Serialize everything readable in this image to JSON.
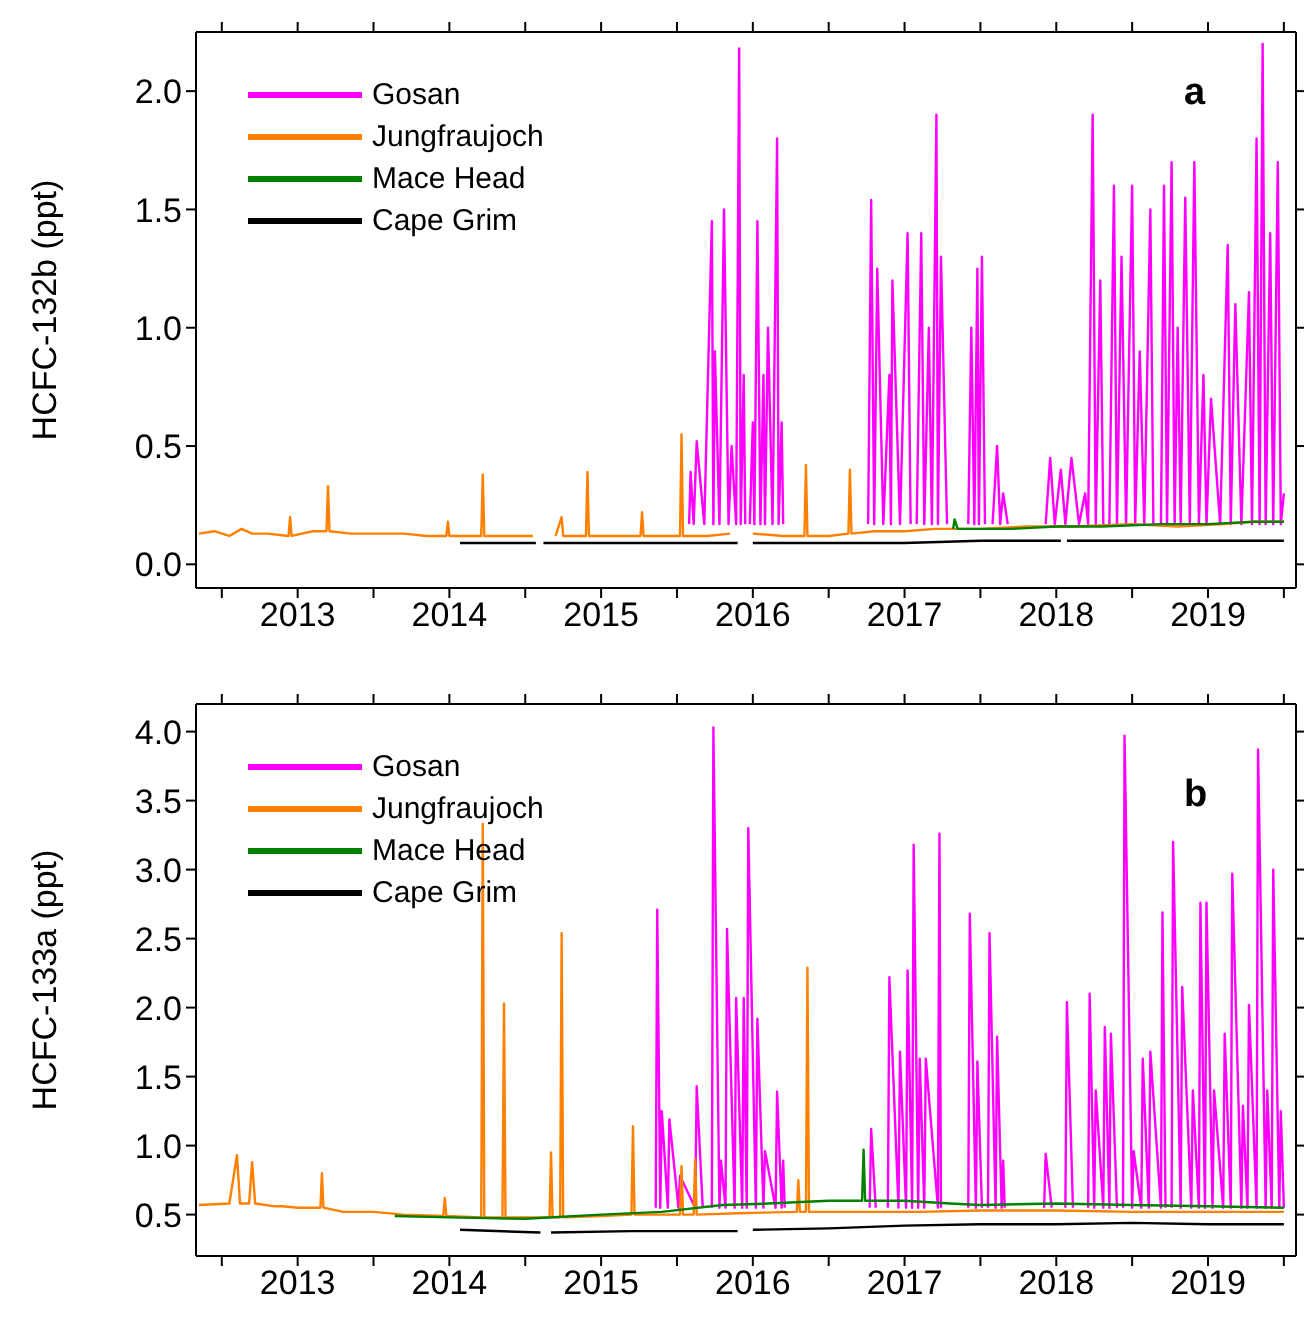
{
  "chart_data": [
    {
      "type": "line",
      "ylabel": "HCFC-132b (ppt)",
      "annotations": [
        "a"
      ],
      "legend": "top left",
      "xlim": [
        2012.83,
        2020.08
      ],
      "xticks": [
        {
          "value": 2013,
          "label": null
        },
        {
          "value": 2013.5,
          "label": "2013"
        },
        {
          "value": 2014,
          "label": null
        },
        {
          "value": 2014.5,
          "label": "2014"
        },
        {
          "value": 2015,
          "label": null
        },
        {
          "value": 2015.5,
          "label": "2015"
        },
        {
          "value": 2016,
          "label": null
        },
        {
          "value": 2016.5,
          "label": "2016"
        },
        {
          "value": 2017,
          "label": null
        },
        {
          "value": 2017.5,
          "label": "2017"
        },
        {
          "value": 2018,
          "label": null
        },
        {
          "value": 2018.5,
          "label": "2018"
        },
        {
          "value": 2019,
          "label": null
        },
        {
          "value": 2019.5,
          "label": "2019"
        },
        {
          "value": 2020,
          "label": null
        }
      ],
      "ylim": [
        -0.1,
        2.25
      ],
      "yticks": [
        {
          "value": 0,
          "label": "0.0"
        },
        {
          "value": 0.5,
          "label": "0.5"
        },
        {
          "value": 1,
          "label": "1.0"
        },
        {
          "value": 1.5,
          "label": "1.5"
        },
        {
          "value": 2,
          "label": "2.0"
        }
      ],
      "series": [
        {
          "name": "Gosan",
          "color": "#ff00ff",
          "x": [
            2016.08,
            2016.09,
            2016.11,
            2016.13,
            2016.18,
            2016.23,
            2016.24,
            2016.25,
            2016.28,
            2016.31,
            2016.34,
            2016.36,
            2016.39,
            2016.41,
            2016.42,
            2016.44,
            2016.45,
            2016.47,
            2016.48,
            2016.5,
            2016.51,
            2016.53,
            2016.55,
            2016.57,
            2016.58,
            2016.6,
            2016.63,
            2016.66,
            2016.67,
            2016.69,
            2016.7,
            2016.98,
            2017.26,
            2017.28,
            2017.3,
            2017.32,
            2017.36,
            2017.4,
            2017.41,
            2017.42,
            2017.47,
            2017.52,
            2017.54,
            2017.56,
            2017.58,
            2017.61,
            2017.63,
            2017.66,
            2017.68,
            2017.71,
            2017.72,
            2017.74,
            2017.78,
            2017.85,
            2017.92,
            2017.94,
            2017.96,
            2017.98,
            2017.99,
            2018.01,
            2018.03,
            2018.06,
            2018.08,
            2018.11,
            2018.13,
            2018.15,
            2018.18,
            2018.3,
            2018.43,
            2018.46,
            2018.49,
            2018.53,
            2018.56,
            2018.6,
            2018.65,
            2018.69,
            2018.71,
            2018.74,
            2018.76,
            2018.79,
            2018.81,
            2018.83,
            2018.85,
            2018.88,
            2018.9,
            2018.93,
            2018.96,
            2019.0,
            2019.02,
            2019.05,
            2019.08,
            2019.12,
            2019.14,
            2019.17,
            2019.19,
            2019.21,
            2019.23,
            2019.26,
            2019.28,
            2019.3,
            2019.32,
            2019.35,
            2019.38,
            2019.41,
            2019.44,
            2019.47,
            2019.49,
            2019.52,
            2019.58,
            2019.63,
            2019.65,
            2019.68,
            2019.72,
            2019.77,
            2019.79,
            2019.82,
            2019.84,
            2019.86,
            2019.88,
            2019.91,
            2019.93,
            2019.96,
            2019.98,
            2020.0
          ],
          "values": [
            0.17,
            0.39,
            0.17,
            0.52,
            0.17,
            1.45,
            0.17,
            0.9,
            0.17,
            1.5,
            0.17,
            0.5,
            0.17,
            2.18,
            0.17,
            0.8,
            0.17,
            null,
            0.17,
            0.6,
            0.17,
            1.45,
            0.17,
            0.8,
            0.17,
            1.0,
            0.17,
            1.8,
            0.17,
            0.6,
            0.17,
            null,
            0.17,
            1.54,
            0.17,
            1.25,
            0.17,
            0.8,
            0.17,
            1.2,
            0.17,
            1.4,
            0.17,
            null,
            0.17,
            1.4,
            0.17,
            1.0,
            0.17,
            1.9,
            0.17,
            1.3,
            0.17,
            null,
            0.17,
            1.0,
            0.17,
            1.25,
            0.17,
            1.3,
            0.17,
            null,
            0.17,
            0.5,
            0.17,
            0.3,
            0.17,
            null,
            0.17,
            0.45,
            0.17,
            0.4,
            0.17,
            0.45,
            0.17,
            0.3,
            0.17,
            1.9,
            0.17,
            1.2,
            0.17,
            null,
            0.17,
            1.6,
            0.17,
            1.3,
            0.17,
            1.6,
            0.17,
            0.9,
            0.17,
            1.5,
            0.17,
            null,
            0.17,
            1.6,
            0.17,
            1.7,
            0.17,
            1.0,
            0.17,
            1.55,
            0.17,
            1.7,
            0.17,
            0.8,
            0.17,
            0.7,
            0.17,
            1.35,
            0.17,
            1.1,
            0.17,
            1.15,
            0.17,
            1.8,
            0.17,
            2.2,
            0.17,
            1.4,
            0.17,
            1.7,
            0.17,
            0.3
          ]
        },
        {
          "name": "Jungfraujoch",
          "color": "#ff8000",
          "x": [
            2012.85,
            2012.95,
            2013.05,
            2013.13,
            2013.2,
            2013.3,
            2013.44,
            2013.45,
            2013.46,
            2013.6,
            2013.69,
            2013.7,
            2013.71,
            2013.85,
            2014.0,
            2014.2,
            2014.35,
            2014.48,
            2014.49,
            2014.5,
            2014.65,
            2014.71,
            2014.72,
            2014.73,
            2014.9,
            2015.05,
            2015.12,
            2015.2,
            2015.24,
            2015.25,
            2015.4,
            2015.41,
            2015.42,
            2015.6,
            2015.76,
            2015.77,
            2015.78,
            2015.95,
            2016.02,
            2016.03,
            2016.04,
            2016.2,
            2016.35,
            2016.42,
            2016.5,
            2016.7,
            2016.84,
            2016.85,
            2016.86,
            2017.0,
            2017.13,
            2017.14,
            2017.15,
            2017.3,
            2017.5,
            2017.7,
            2018.0,
            2018.3,
            2018.6,
            2019.0,
            2019.3,
            2019.6,
            2019.8,
            2020.0
          ],
          "values": [
            0.13,
            0.14,
            0.12,
            0.15,
            0.13,
            0.13,
            0.12,
            0.2,
            0.12,
            0.14,
            0.14,
            0.33,
            0.14,
            0.13,
            0.13,
            0.13,
            0.12,
            0.12,
            0.18,
            0.12,
            0.12,
            0.12,
            0.38,
            0.12,
            0.12,
            0.12,
            null,
            0.12,
            0.2,
            0.12,
            0.12,
            0.39,
            0.12,
            0.12,
            0.12,
            0.22,
            0.12,
            0.12,
            0.12,
            0.55,
            0.12,
            0.12,
            0.13,
            null,
            0.13,
            0.12,
            0.12,
            0.42,
            0.12,
            0.12,
            0.13,
            0.4,
            0.13,
            0.14,
            0.14,
            0.15,
            0.15,
            0.16,
            0.16,
            0.17,
            0.16,
            0.17,
            0.18,
            0.18
          ]
        },
        {
          "name": "Mace Head",
          "color": "#008000",
          "x": [
            2017.82,
            2017.83,
            2017.85,
            2018.2,
            2018.5,
            2018.8,
            2019.2,
            2019.5,
            2019.8,
            2020.0
          ],
          "values": [
            0.15,
            0.19,
            0.15,
            0.15,
            0.16,
            0.16,
            0.17,
            0.17,
            0.18,
            0.18
          ]
        },
        {
          "name": "Cape Grim",
          "color": "#000000",
          "x": [
            2014.57,
            2014.9,
            2015.07,
            2015.1,
            2015.12,
            2015.5,
            2015.9,
            2016.4,
            2016.45,
            2016.5,
            2017.0,
            2017.5,
            2018.0,
            2018.53,
            2018.55,
            2018.57,
            2019.0,
            2019.5,
            2020.0
          ],
          "values": [
            0.09,
            0.09,
            0.09,
            null,
            0.09,
            0.09,
            0.09,
            0.09,
            null,
            0.09,
            0.09,
            0.09,
            0.1,
            0.1,
            null,
            0.1,
            0.1,
            0.1,
            0.1
          ]
        }
      ]
    },
    {
      "type": "line",
      "ylabel": "HCFC-133a (ppt)",
      "annotations": [
        "b"
      ],
      "legend": "top left",
      "xlim": [
        2012.83,
        2020.08
      ],
      "xticks": [
        {
          "value": 2013,
          "label": null
        },
        {
          "value": 2013.5,
          "label": "2013"
        },
        {
          "value": 2014,
          "label": null
        },
        {
          "value": 2014.5,
          "label": "2014"
        },
        {
          "value": 2015,
          "label": null
        },
        {
          "value": 2015.5,
          "label": "2015"
        },
        {
          "value": 2016,
          "label": null
        },
        {
          "value": 2016.5,
          "label": "2016"
        },
        {
          "value": 2017,
          "label": null
        },
        {
          "value": 2017.5,
          "label": "2017"
        },
        {
          "value": 2018,
          "label": null
        },
        {
          "value": 2018.5,
          "label": "2018"
        },
        {
          "value": 2019,
          "label": null
        },
        {
          "value": 2019.5,
          "label": "2019"
        },
        {
          "value": 2020,
          "label": null
        }
      ],
      "ylim": [
        0.2,
        4.2
      ],
      "yticks": [
        {
          "value": 0.5,
          "label": "0.5"
        },
        {
          "value": 1,
          "label": "1.0"
        },
        {
          "value": 1.5,
          "label": "1.5"
        },
        {
          "value": 2,
          "label": "2.0"
        },
        {
          "value": 2.5,
          "label": "2.5"
        },
        {
          "value": 3,
          "label": "3.0"
        },
        {
          "value": 3.5,
          "label": "3.5"
        },
        {
          "value": 4,
          "label": "4.0"
        }
      ],
      "series": [
        {
          "name": "Gosan",
          "color": "#ff00ff",
          "x": [
            2015.86,
            2015.87,
            2015.89,
            2015.9,
            2015.94,
            2015.95,
            2016.01,
            2016.02,
            2016.12,
            2016.13,
            2016.17,
            2016.18,
            2016.2,
            2016.21,
            2016.23,
            2016.24,
            2016.28,
            2016.29,
            2016.32,
            2016.33,
            2016.38,
            2016.39,
            2016.43,
            2016.44,
            2016.46,
            2016.47,
            2016.52,
            2016.53,
            2016.57,
            2016.58,
            2016.65,
            2016.66,
            2016.69,
            2016.7,
            2016.71,
            2016.9,
            2017.27,
            2017.28,
            2017.31,
            2017.32,
            2017.33,
            2017.34,
            2017.39,
            2017.4,
            2017.46,
            2017.47,
            2017.51,
            2017.52,
            2017.55,
            2017.56,
            2017.59,
            2017.6,
            2017.63,
            2017.64,
            2017.72,
            2017.73,
            2017.74,
            2017.85,
            2017.92,
            2017.93,
            2017.97,
            2017.98,
            2018.01,
            2018.02,
            2018.05,
            2018.06,
            2018.1,
            2018.11,
            2018.14,
            2018.15,
            2018.16,
            2018.3,
            2018.42,
            2018.43,
            2018.47,
            2018.48,
            2018.56,
            2018.57,
            2018.61,
            2018.62,
            2018.71,
            2018.72,
            2018.75,
            2018.76,
            2018.81,
            2018.82,
            2018.85,
            2018.86,
            2018.9,
            2018.91,
            2018.94,
            2018.95,
            2019.0,
            2019.01,
            2019.06,
            2019.07,
            2019.11,
            2019.12,
            2019.19,
            2019.2,
            2019.22,
            2019.23,
            2019.26,
            2019.27,
            2019.32,
            2019.33,
            2019.39,
            2019.4,
            2019.44,
            2019.45,
            2019.48,
            2019.49,
            2019.53,
            2019.54,
            2019.6,
            2019.61,
            2019.65,
            2019.66,
            2019.72,
            2019.73,
            2019.76,
            2019.77,
            2019.82,
            2019.83,
            2019.88,
            2019.89,
            2019.92,
            2019.93,
            2019.97,
            2019.98,
            2020.0
          ],
          "values": [
            0.55,
            2.71,
            0.55,
            1.25,
            0.55,
            1.19,
            0.55,
            0.78,
            0.55,
            1.43,
            0.55,
            null,
            null,
            null,
            0.55,
            4.03,
            0.55,
            0.89,
            0.55,
            2.57,
            0.55,
            2.07,
            0.55,
            2.07,
            0.55,
            3.3,
            0.55,
            1.92,
            0.55,
            0.96,
            0.55,
            1.39,
            0.55,
            0.89,
            0.55,
            null,
            0.55,
            1.12,
            0.55,
            null,
            null,
            null,
            0.55,
            2.22,
            0.55,
            1.68,
            0.55,
            2.27,
            0.55,
            3.18,
            0.55,
            1.63,
            0.55,
            1.63,
            0.55,
            3.26,
            0.55,
            null,
            0.55,
            2.68,
            0.55,
            1.61,
            0.55,
            null,
            0.55,
            2.54,
            0.55,
            1.79,
            0.55,
            0.89,
            0.55,
            null,
            0.55,
            0.94,
            0.55,
            null,
            0.55,
            2.04,
            0.55,
            null,
            0.55,
            2.1,
            0.55,
            1.4,
            0.55,
            1.86,
            0.55,
            1.81,
            0.55,
            null,
            0.55,
            3.97,
            0.55,
            0.96,
            0.55,
            1.63,
            0.55,
            1.68,
            0.55,
            2.69,
            0.55,
            null,
            0.55,
            3.2,
            0.55,
            2.15,
            0.55,
            1.4,
            0.55,
            2.76,
            0.55,
            2.76,
            0.55,
            1.4,
            0.55,
            1.81,
            0.55,
            2.97,
            0.55,
            1.29,
            0.55,
            2.02,
            0.55,
            3.87,
            0.55,
            1.4,
            0.55,
            3.0,
            0.55,
            1.25,
            0.55
          ]
        },
        {
          "name": "Jungfraujoch",
          "color": "#ff8000",
          "x": [
            2012.85,
            2013.05,
            2013.1,
            2013.12,
            2013.18,
            2013.2,
            2013.22,
            2013.35,
            2013.4,
            2013.5,
            2013.65,
            2013.66,
            2013.67,
            2013.8,
            2014.0,
            2014.2,
            2014.46,
            2014.47,
            2014.48,
            2014.71,
            2014.72,
            2014.73,
            2014.85,
            2014.86,
            2014.87,
            2015.0,
            2015.16,
            2015.17,
            2015.18,
            2015.23,
            2015.24,
            2015.25,
            2015.5,
            2015.7,
            2015.71,
            2015.72,
            2016.02,
            2016.03,
            2016.04,
            2016.11,
            2016.12,
            2016.13,
            2016.4,
            2016.79,
            2016.8,
            2016.81,
            2016.85,
            2016.86,
            2016.87,
            2017.2,
            2017.6,
            2018.0,
            2018.5,
            2019.0,
            2019.5,
            2020.0
          ],
          "values": [
            0.57,
            0.58,
            0.93,
            0.58,
            0.58,
            0.88,
            0.58,
            0.56,
            0.56,
            0.55,
            0.55,
            0.8,
            0.55,
            0.52,
            0.52,
            0.5,
            0.49,
            0.62,
            0.49,
            0.48,
            3.33,
            0.48,
            0.48,
            2.03,
            0.48,
            0.48,
            0.48,
            0.95,
            0.48,
            0.48,
            2.54,
            0.48,
            0.49,
            0.5,
            1.14,
            0.5,
            0.5,
            0.85,
            0.5,
            0.5,
            0.9,
            0.5,
            0.51,
            0.52,
            0.75,
            0.52,
            0.52,
            2.29,
            0.52,
            0.52,
            0.52,
            0.53,
            0.53,
            0.52,
            0.52,
            0.52
          ]
        },
        {
          "name": "Mace Head",
          "color": "#008000",
          "x": [
            2014.14,
            2014.5,
            2015.0,
            2015.5,
            2015.9,
            2016.3,
            2016.6,
            2017.0,
            2017.22,
            2017.23,
            2017.24,
            2017.5,
            2017.8,
            2018.0,
            2018.5,
            2019.0,
            2019.5,
            2020.0
          ],
          "values": [
            0.49,
            0.48,
            0.47,
            0.5,
            0.52,
            0.57,
            0.58,
            0.6,
            0.6,
            0.97,
            0.6,
            0.6,
            0.58,
            0.57,
            0.58,
            0.57,
            0.56,
            0.55
          ]
        },
        {
          "name": "Cape Grim",
          "color": "#000000",
          "x": [
            2014.57,
            2015.1,
            2015.13,
            2015.17,
            2015.7,
            2016.4,
            2016.45,
            2016.5,
            2017.0,
            2017.5,
            2018.0,
            2018.5,
            2019.0,
            2019.5,
            2020.0
          ],
          "values": [
            0.39,
            0.37,
            null,
            0.37,
            0.38,
            0.38,
            null,
            0.39,
            0.4,
            0.42,
            0.43,
            0.43,
            0.44,
            0.43,
            0.43
          ]
        }
      ]
    }
  ]
}
